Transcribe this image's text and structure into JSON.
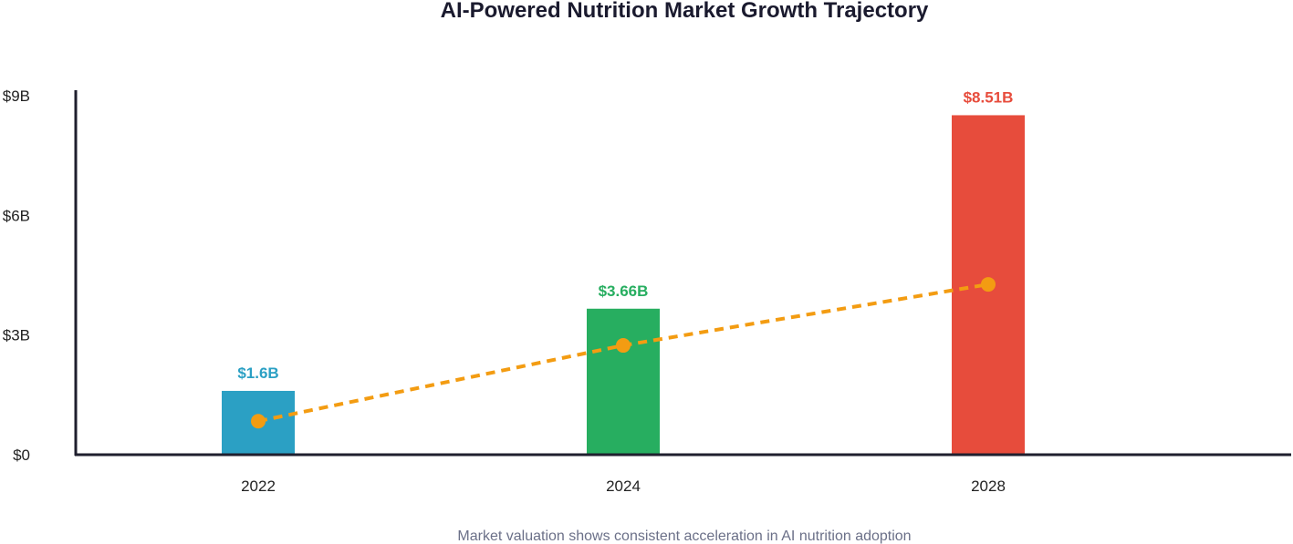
{
  "chart_data": {
    "type": "bar",
    "title": "AI-Powered Nutrition Market Growth Trajectory",
    "subtitle": "Market valuation shows consistent acceleration in AI nutrition adoption",
    "xlabel": "",
    "ylabel": "",
    "categories": [
      "2022",
      "2024",
      "2028"
    ],
    "values": [
      1.6,
      3.66,
      8.51
    ],
    "data_labels": [
      "$1.6B",
      "$3.66B",
      "$8.51B"
    ],
    "bar_colors": [
      "#2ba0c4",
      "#27ae60",
      "#e74c3c"
    ],
    "ylim": [
      0,
      9
    ],
    "yticks": [
      0,
      3,
      6,
      9
    ],
    "ytick_labels": [
      "$0",
      "$3B",
      "$6B",
      "$9B"
    ],
    "grid": false,
    "trend_line": {
      "style": "dashed",
      "color": "#f39c12",
      "values": [
        0.84,
        2.74,
        4.27
      ]
    }
  }
}
